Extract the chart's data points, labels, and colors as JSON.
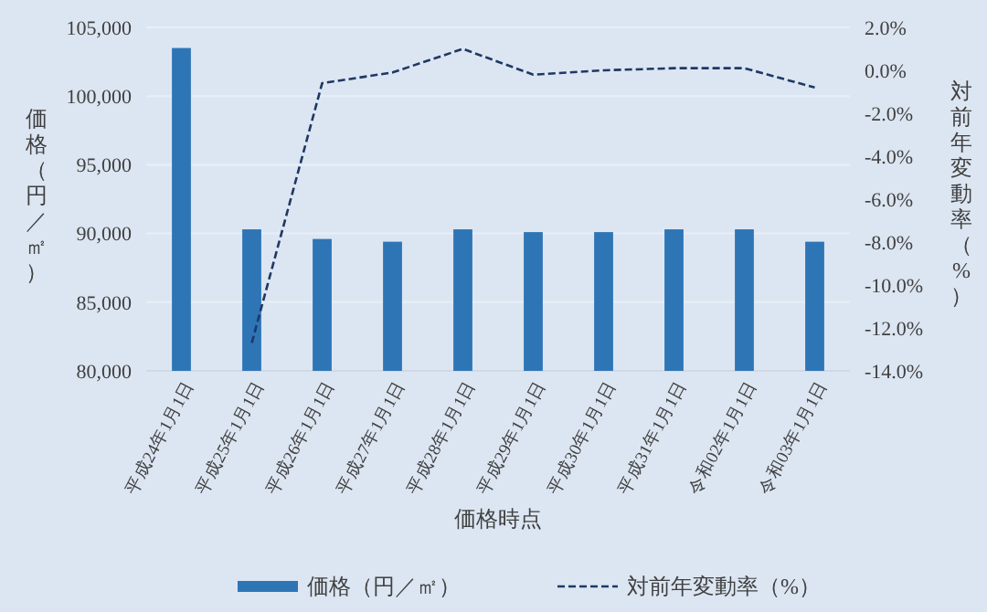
{
  "chart_data": {
    "type": "bar",
    "xlabel": "価格時点",
    "ylabel": "価格（円／㎡）",
    "y2label": "対前年変動率（%）",
    "categories": [
      "平成24年1月1日",
      "平成25年1月1日",
      "平成26年1月1日",
      "平成27年1月1日",
      "平成28年1月1日",
      "平成29年1月1日",
      "平成30年1月1日",
      "平成31年1月1日",
      "令和02年1月1日",
      "令和03年1月1日"
    ],
    "series": [
      {
        "name": "価格（円／㎡）",
        "color": "#2e75b6",
        "values": [
          103500,
          90300,
          89600,
          89400,
          90300,
          90100,
          90100,
          90300,
          90300,
          89400
        ]
      },
      {
        "name": "対前年変動率（%）",
        "type": "line",
        "axis": "y2",
        "color": "#1f3864",
        "line_style": "dashed",
        "values": [
          null,
          -12.7,
          -0.6,
          -0.1,
          1.0,
          -0.2,
          0.0,
          0.1,
          0.1,
          -0.8
        ]
      }
    ],
    "ylim": [
      80000,
      105000
    ],
    "yticks": [
      {
        "value": 80000,
        "label": "80,000"
      },
      {
        "value": 85000,
        "label": "85,000"
      },
      {
        "value": 90000,
        "label": "90,000"
      },
      {
        "value": 95000,
        "label": "95,000"
      },
      {
        "value": 100000,
        "label": "100,000"
      },
      {
        "value": 105000,
        "label": "105,000"
      }
    ],
    "y2lim": [
      -14,
      2
    ],
    "y2ticks": [
      {
        "value": 2,
        "label": "2.0%"
      },
      {
        "value": 0,
        "label": "0.0%"
      },
      {
        "value": -2,
        "label": "-2.0%"
      },
      {
        "value": -4,
        "label": "-4.0%"
      },
      {
        "value": -6,
        "label": "-6.0%"
      },
      {
        "value": -8,
        "label": "-8.0%"
      },
      {
        "value": -10,
        "label": "-10.0%"
      },
      {
        "value": -12,
        "label": "-12.0%"
      },
      {
        "value": -14,
        "label": "-14.0%"
      }
    ],
    "grid": "y",
    "legend": "bottom"
  }
}
